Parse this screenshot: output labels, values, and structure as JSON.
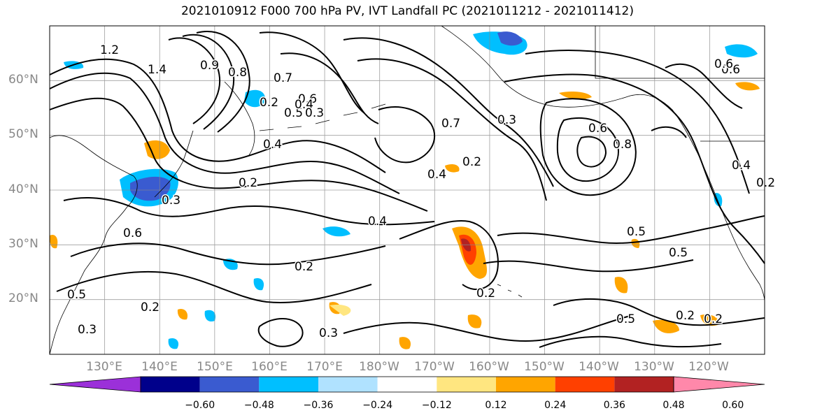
{
  "title": "2021010912 F000 700 hPa PV, IVT Landfall PC (2021011212 - 2021011412)",
  "lat_labels": [
    "60°N",
    "50°N",
    "40°N",
    "30°N",
    "20°N"
  ],
  "lon_labels": [
    "130°E",
    "140°E",
    "150°E",
    "160°E",
    "170°E",
    "180°W",
    "170°W",
    "160°W",
    "150°W",
    "140°W",
    "130°W",
    "120°W"
  ],
  "colorbar": {
    "colors": [
      "#9b30d9",
      "#00008b",
      "#3a5bd0",
      "#00bfff",
      "#b0e2ff",
      "#ffffff",
      "#ffe680",
      "#ffa500",
      "#ff4000",
      "#b22222",
      "#ff88aa"
    ],
    "tick_labels": [
      "−0.60",
      "−0.48",
      "−0.36",
      "−0.24",
      "−0.12",
      "0.12",
      "0.24",
      "0.36",
      "0.48",
      "0.60"
    ]
  },
  "contour_labels": [
    "1.2",
    "1.4",
    "0.9",
    "0.8",
    "0.7",
    "0.6",
    "0.5",
    "0.4",
    "0.3",
    "0.2",
    "0.4",
    "0.2",
    "0.3",
    "0.6",
    "0.7",
    "0.4",
    "0.2",
    "0.3",
    "0.6",
    "0.8",
    "0.5",
    "0.2",
    "0.2",
    "0.4",
    "0.5",
    "0.2",
    "0.3",
    "0.2",
    "0.6",
    "0.5",
    "0.4",
    "0.6",
    "0.2",
    "0.3",
    "0.5",
    "0.2"
  ],
  "map": {
    "projection": "PlateCarree",
    "lat_range": [
      10,
      70
    ],
    "lon_range": [
      120,
      250
    ],
    "gridlines": true
  }
}
